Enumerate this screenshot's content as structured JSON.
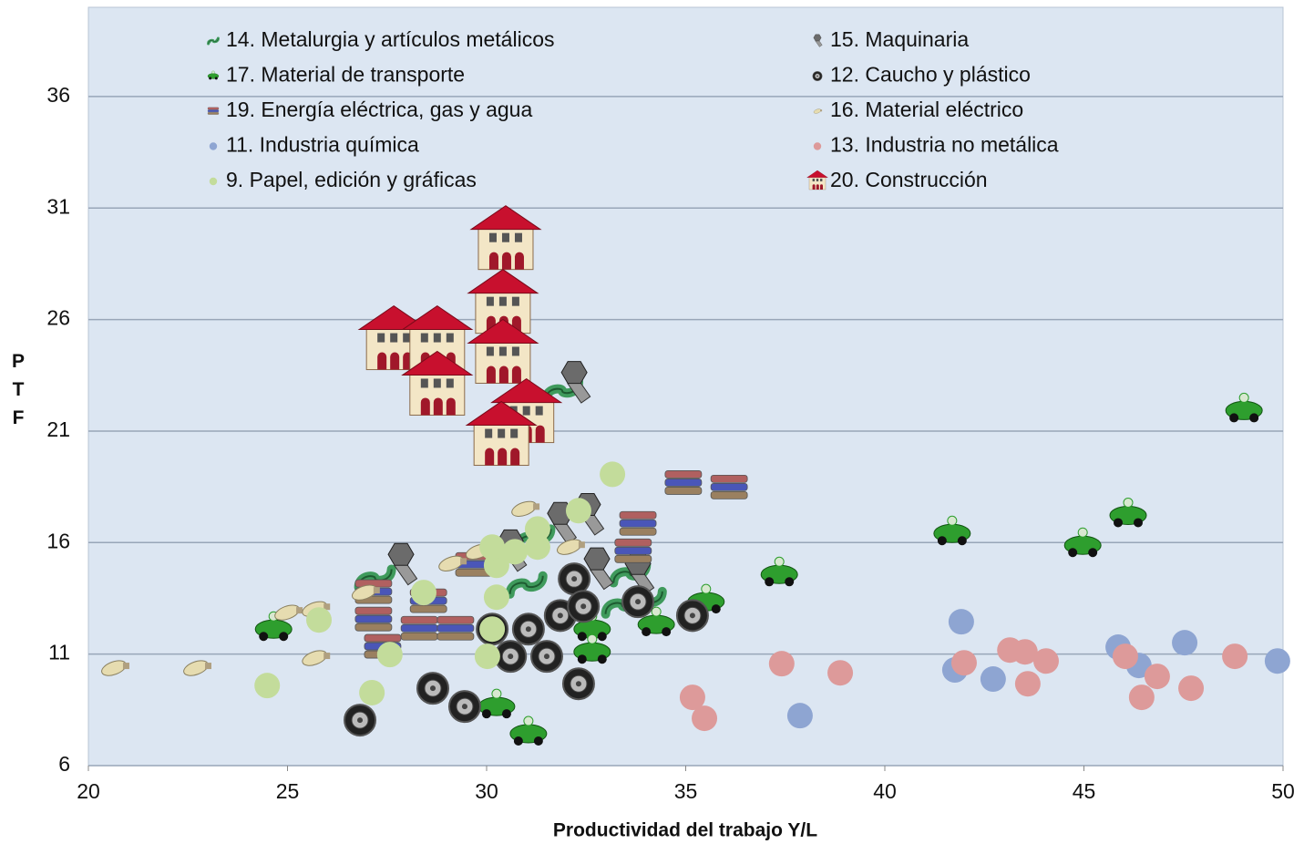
{
  "chart_data": {
    "type": "scatter",
    "xlabel": "Productividad del trabajo Y/L",
    "ylabel": "PTF",
    "xlim": [
      20,
      50
    ],
    "xticks": [
      20,
      25,
      30,
      35,
      40,
      45,
      50
    ],
    "ylim": [
      6,
      40
    ],
    "yticks": [
      6,
      11,
      16,
      21,
      26,
      31,
      36
    ],
    "grid": true,
    "series": [
      {
        "name": "14. Metalurgia y artículos metálicos",
        "marker": "spring",
        "color": "#3f9a5c",
        "x": [
          31.9,
          31.2,
          27.2,
          33.6,
          34.0,
          31.0,
          33.4
        ],
        "y": [
          22.8,
          16.2,
          14.4,
          14.6,
          13.4,
          14.1,
          13.2
        ]
      },
      {
        "name": "15. Maquinaria",
        "marker": "bolt",
        "color": "#6b6b6b",
        "x": [
          32.2,
          31.85,
          32.54,
          27.85,
          33.8,
          32.77,
          30.6
        ],
        "y": [
          23.14,
          16.82,
          17.22,
          14.98,
          14.57,
          14.78,
          15.59
        ]
      },
      {
        "name": "17. Material de transporte",
        "marker": "car",
        "color": "#2e9e2e",
        "x": [
          24.65,
          30.25,
          31.05,
          32.65,
          32.65,
          34.26,
          35.51,
          37.35,
          41.69,
          44.97,
          46.11,
          49.02
        ],
        "y": [
          12.12,
          8.65,
          7.43,
          12.12,
          11.1,
          12.33,
          13.35,
          14.57,
          16.41,
          15.88,
          17.22,
          21.92
        ]
      },
      {
        "name": "12. Caucho y plástico",
        "marker": "tire",
        "color": "#222222",
        "x": [
          26.82,
          28.65,
          29.45,
          30.6,
          31.05,
          31.51,
          32.31,
          31.85,
          32.2,
          32.43,
          33.8,
          35.17,
          30.14
        ],
        "y": [
          8.04,
          9.47,
          8.65,
          10.9,
          12.12,
          10.9,
          9.67,
          12.73,
          14.37,
          13.14,
          13.35,
          12.73,
          12.12
        ]
      },
      {
        "name": "19. Energía eléctrica, gas y agua",
        "marker": "stack",
        "color": "#4a56b8",
        "x": [
          34.94,
          36.09,
          33.8,
          33.68,
          27.16,
          27.39,
          28.31,
          29.22,
          29.68,
          28.54,
          27.16
        ],
        "y": [
          18.65,
          18.45,
          16.82,
          15.59,
          12.53,
          11.31,
          12.12,
          12.12,
          14.98,
          13.35,
          13.76
        ]
      },
      {
        "name": "16. Material eléctrico",
        "marker": "bulb",
        "color": "#e6dcb0",
        "x": [
          20.64,
          22.7,
          24.99,
          25.68,
          25.68,
          26.93,
          29.11,
          30.94,
          32.08,
          29.79
        ],
        "y": [
          10.37,
          10.37,
          12.86,
          13.02,
          10.82,
          13.76,
          15.06,
          17.51,
          15.8,
          15.59
        ]
      },
      {
        "name": "11. Industria química",
        "marker": "circle",
        "color": "#8ea5d2",
        "x": [
          37.87,
          41.92,
          41.76,
          42.72,
          45.86,
          46.38,
          47.53,
          49.86
        ],
        "y": [
          8.24,
          12.45,
          10.29,
          9.88,
          11.31,
          10.49,
          11.51,
          10.69
        ]
      },
      {
        "name": "13. Industria no metálica",
        "marker": "circle",
        "color": "#dd9a9a",
        "x": [
          37.41,
          38.88,
          35.17,
          35.47,
          41.99,
          43.14,
          43.52,
          44.05,
          43.59,
          46.04,
          46.45,
          46.84,
          47.69,
          48.79
        ],
        "y": [
          10.57,
          10.16,
          9.06,
          8.12,
          10.61,
          11.18,
          11.1,
          10.69,
          9.67,
          10.9,
          9.06,
          10.0,
          9.47,
          10.9
        ]
      },
      {
        "name": "9. Papel, edición y gráficas",
        "marker": "circle",
        "color": "#c3dc9b",
        "x": [
          24.49,
          25.79,
          27.12,
          27.57,
          28.42,
          30.02,
          30.14,
          30.25,
          30.25,
          30.14,
          30.71,
          31.28,
          31.28,
          32.31,
          33.16
        ],
        "y": [
          9.59,
          12.53,
          9.27,
          10.98,
          13.76,
          10.9,
          12.12,
          13.55,
          14.98,
          15.8,
          15.59,
          15.8,
          16.61,
          17.43,
          19.06
        ]
      },
      {
        "name": "20. Construcción",
        "marker": "house",
        "color": "#c8102e",
        "x": [
          30.48,
          30.41,
          27.67,
          28.76,
          30.41,
          28.76,
          31.0,
          30.37
        ],
        "y": [
          29.47,
          26.61,
          24.98,
          24.98,
          24.37,
          22.94,
          21.71,
          20.69
        ]
      }
    ]
  }
}
